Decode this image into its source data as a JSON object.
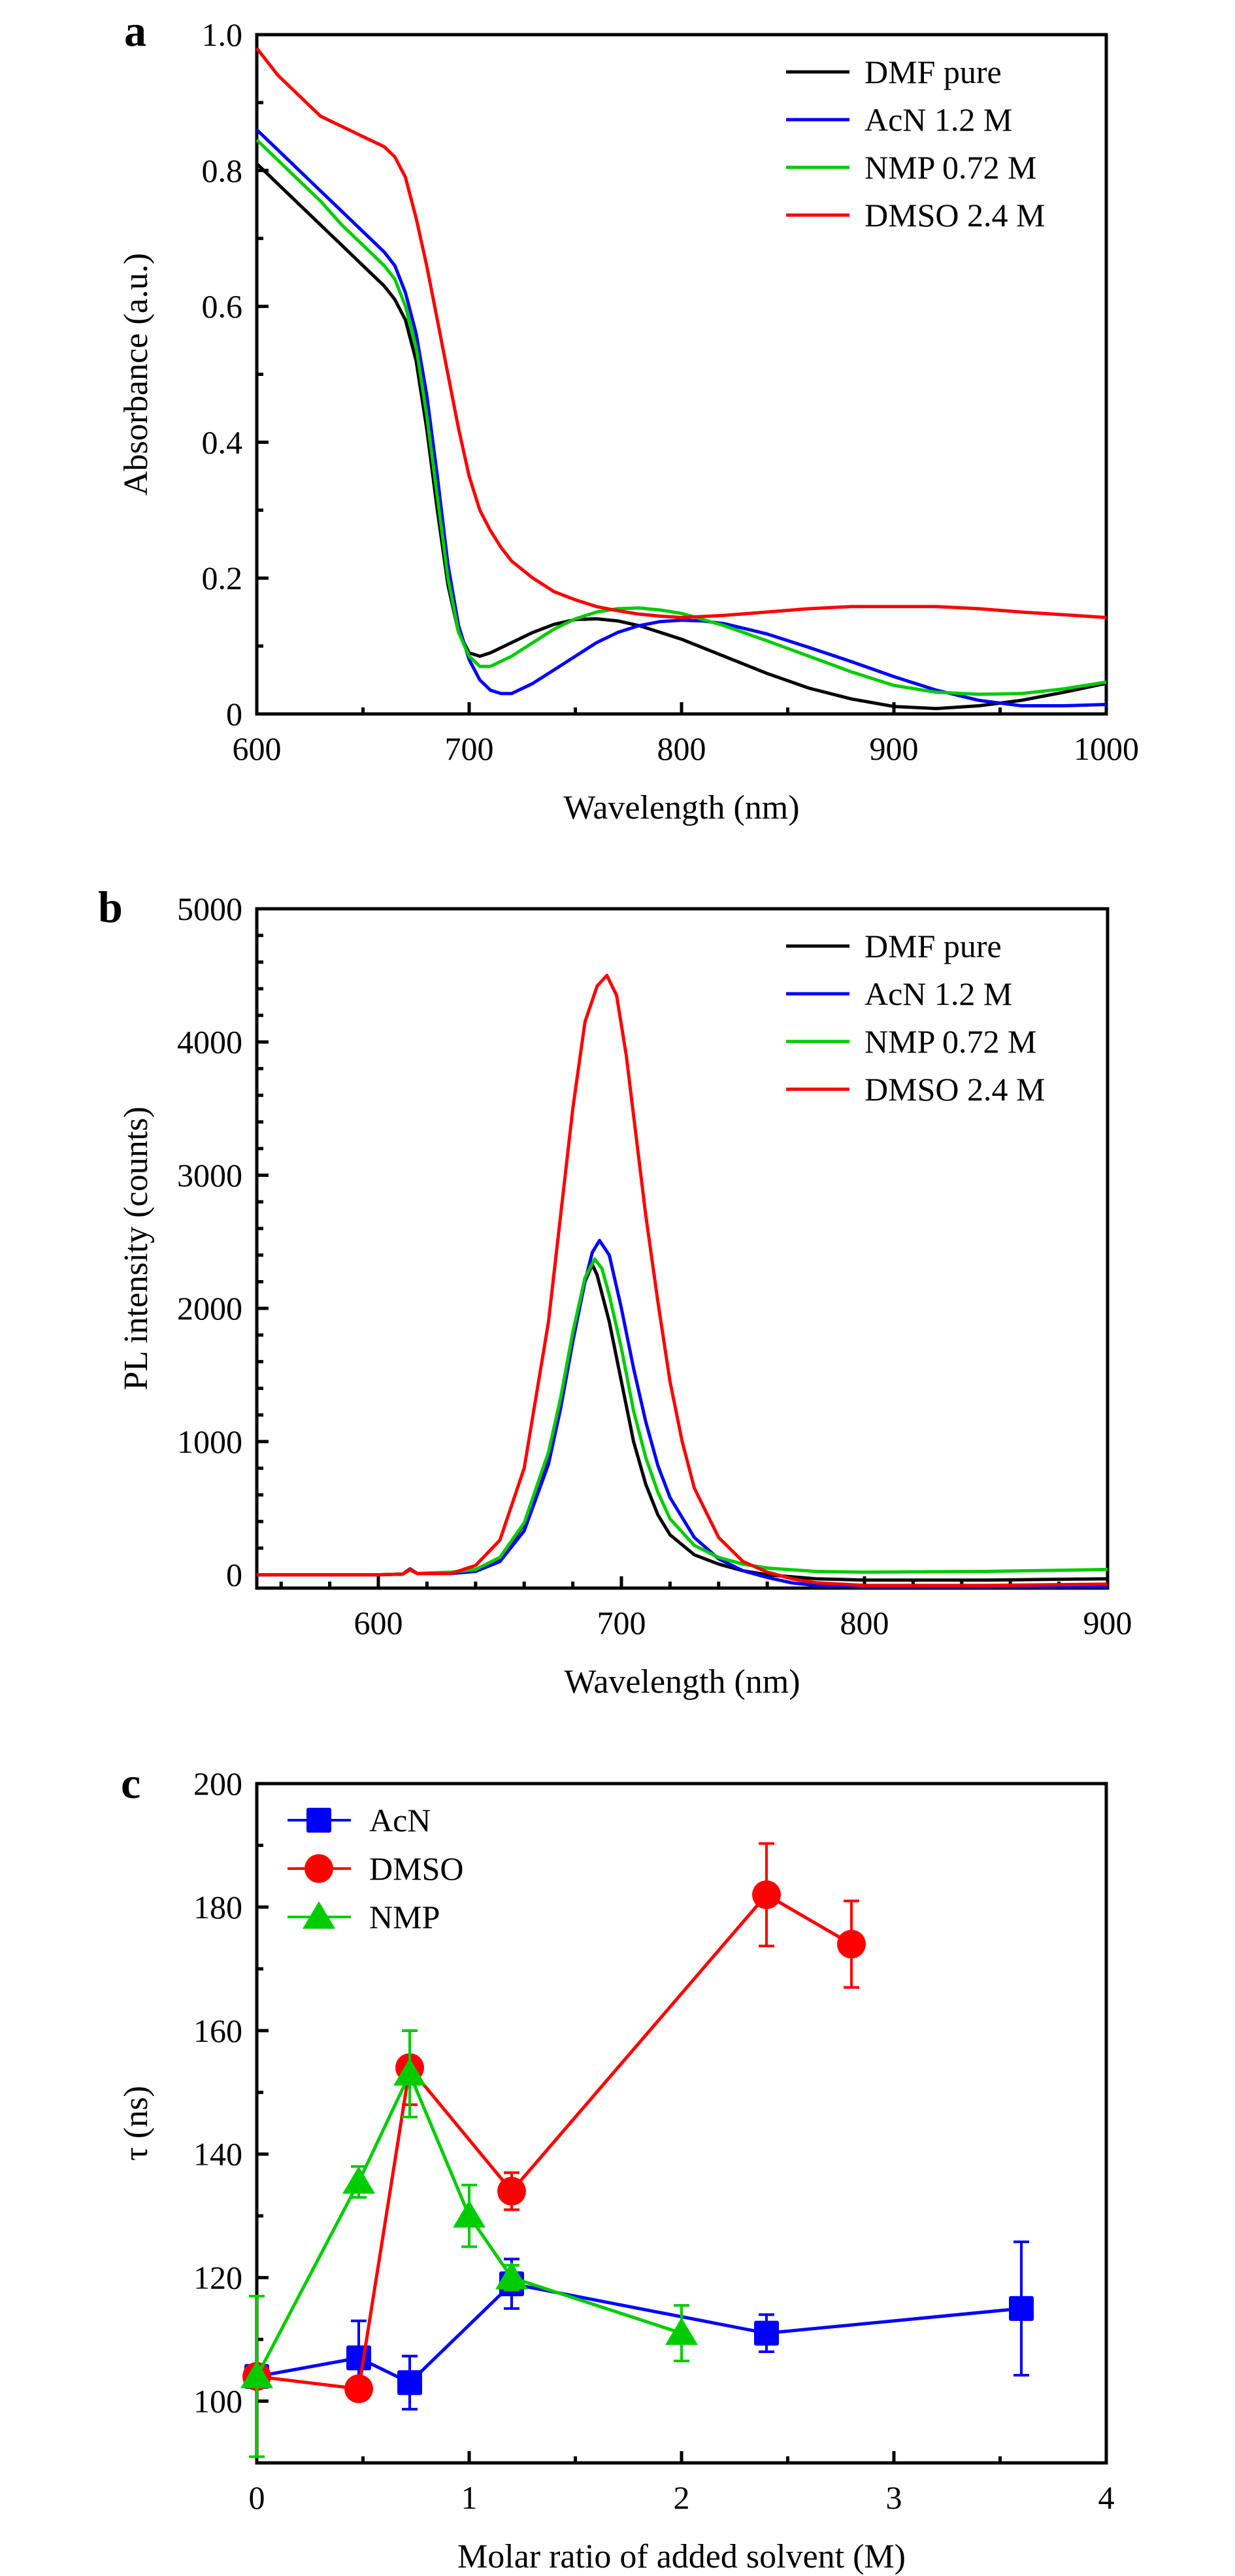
{
  "chart_data": [
    {
      "panel": "a",
      "type": "line",
      "title": "",
      "xlabel": "Wavelength (nm)",
      "ylabel": "Absorbance (a.u.)",
      "xlim": [
        600,
        1000
      ],
      "ylim": [
        0,
        1.0
      ],
      "xticks": [
        600,
        700,
        800,
        900,
        1000
      ],
      "xtick_labels": [
        "600",
        "700",
        "800",
        "900",
        "1000"
      ],
      "xminor": [
        650,
        750,
        850,
        950
      ],
      "yticks": [
        0,
        0.2,
        0.4,
        0.6,
        0.8,
        1.0
      ],
      "ytick_labels": [
        "0",
        "0.2",
        "0.4",
        "0.6",
        "0.8",
        "1.0"
      ],
      "yminor": [
        0.1,
        0.3,
        0.5,
        0.7,
        0.9
      ],
      "grid": false,
      "legend_position": "top-right",
      "series": [
        {
          "name": "DMF pure",
          "color": "#000000",
          "x": [
            600,
            610,
            620,
            630,
            640,
            650,
            660,
            665,
            670,
            675,
            680,
            685,
            690,
            695,
            700,
            705,
            710,
            720,
            730,
            740,
            750,
            760,
            770,
            780,
            790,
            800,
            820,
            840,
            860,
            880,
            900,
            920,
            940,
            960,
            980,
            1000
          ],
          "y": [
            0.81,
            0.78,
            0.75,
            0.72,
            0.69,
            0.66,
            0.63,
            0.61,
            0.58,
            0.52,
            0.42,
            0.3,
            0.19,
            0.12,
            0.09,
            0.085,
            0.09,
            0.105,
            0.12,
            0.132,
            0.139,
            0.14,
            0.137,
            0.13,
            0.12,
            0.11,
            0.085,
            0.06,
            0.038,
            0.022,
            0.011,
            0.008,
            0.012,
            0.02,
            0.032,
            0.045
          ]
        },
        {
          "name": "AcN 1.2 M",
          "color": "#0000ff",
          "x": [
            600,
            610,
            620,
            630,
            640,
            650,
            660,
            665,
            670,
            675,
            680,
            685,
            690,
            695,
            700,
            705,
            710,
            715,
            720,
            730,
            740,
            750,
            760,
            770,
            780,
            790,
            800,
            810,
            820,
            840,
            860,
            880,
            900,
            920,
            940,
            960,
            980,
            1000
          ],
          "y": [
            0.86,
            0.83,
            0.8,
            0.77,
            0.74,
            0.71,
            0.68,
            0.66,
            0.62,
            0.56,
            0.47,
            0.35,
            0.22,
            0.13,
            0.08,
            0.05,
            0.035,
            0.03,
            0.03,
            0.045,
            0.065,
            0.085,
            0.105,
            0.12,
            0.13,
            0.136,
            0.138,
            0.137,
            0.133,
            0.118,
            0.098,
            0.077,
            0.055,
            0.035,
            0.02,
            0.012,
            0.012,
            0.014
          ]
        },
        {
          "name": "NMP 0.72 M",
          "color": "#00cc00",
          "x": [
            600,
            610,
            620,
            630,
            640,
            650,
            660,
            665,
            670,
            675,
            680,
            685,
            690,
            695,
            700,
            705,
            710,
            720,
            730,
            740,
            750,
            760,
            770,
            780,
            790,
            800,
            820,
            840,
            860,
            880,
            900,
            920,
            940,
            960,
            980,
            1000
          ],
          "y": [
            0.845,
            0.815,
            0.785,
            0.755,
            0.72,
            0.69,
            0.66,
            0.64,
            0.6,
            0.54,
            0.44,
            0.32,
            0.2,
            0.12,
            0.085,
            0.07,
            0.07,
            0.085,
            0.105,
            0.125,
            0.14,
            0.15,
            0.155,
            0.156,
            0.153,
            0.148,
            0.13,
            0.108,
            0.085,
            0.062,
            0.042,
            0.032,
            0.029,
            0.03,
            0.037,
            0.047
          ]
        },
        {
          "name": "DMSO 2.4 M",
          "color": "#ff0000",
          "x": [
            600,
            610,
            620,
            630,
            640,
            650,
            660,
            665,
            670,
            675,
            680,
            685,
            690,
            695,
            700,
            705,
            710,
            715,
            720,
            730,
            740,
            750,
            760,
            770,
            780,
            790,
            800,
            820,
            840,
            860,
            880,
            900,
            920,
            940,
            960,
            980,
            1000
          ],
          "y": [
            0.98,
            0.94,
            0.91,
            0.88,
            0.865,
            0.85,
            0.835,
            0.82,
            0.79,
            0.73,
            0.66,
            0.58,
            0.5,
            0.42,
            0.35,
            0.3,
            0.27,
            0.245,
            0.225,
            0.2,
            0.18,
            0.168,
            0.158,
            0.152,
            0.147,
            0.144,
            0.142,
            0.145,
            0.15,
            0.155,
            0.158,
            0.158,
            0.158,
            0.155,
            0.15,
            0.146,
            0.142
          ]
        }
      ]
    },
    {
      "panel": "b",
      "type": "line",
      "title": "",
      "xlabel": "Wavelength (nm)",
      "ylabel": "PL intensity (counts)",
      "xlim": [
        550,
        900
      ],
      "ylim": [
        -100,
        5000
      ],
      "xticks": [
        600,
        700,
        800,
        900
      ],
      "xtick_labels": [
        "600",
        "700",
        "800",
        "900"
      ],
      "xminor": [
        560,
        580,
        620,
        640,
        660,
        680,
        720,
        740,
        760,
        780,
        820,
        840,
        860,
        880
      ],
      "yticks": [
        0,
        1000,
        2000,
        3000,
        4000,
        5000
      ],
      "ytick_labels": [
        "0",
        "1000",
        "2000",
        "3000",
        "4000",
        "5000"
      ],
      "yminor": [
        200,
        400,
        600,
        800,
        1200,
        1400,
        1600,
        1800,
        2200,
        2400,
        2600,
        2800,
        3200,
        3400,
        3600,
        3800,
        4200,
        4400,
        4600,
        4800
      ],
      "grid": false,
      "legend_position": "top-right",
      "series": [
        {
          "name": "DMF pure",
          "color": "#000000",
          "x": [
            550,
            600,
            610,
            613,
            616,
            630,
            640,
            650,
            660,
            670,
            675,
            680,
            685,
            688,
            690,
            695,
            700,
            705,
            710,
            715,
            720,
            730,
            740,
            750,
            760,
            780,
            800,
            850,
            900
          ],
          "y": [
            0,
            0,
            5,
            40,
            10,
            10,
            30,
            120,
            380,
            900,
            1300,
            1800,
            2200,
            2330,
            2250,
            1900,
            1450,
            1000,
            680,
            450,
            300,
            150,
            80,
            30,
            0,
            -30,
            -40,
            -40,
            -30
          ]
        },
        {
          "name": "AcN 1.2 M",
          "color": "#0000ff",
          "x": [
            550,
            600,
            610,
            613,
            616,
            630,
            640,
            650,
            660,
            670,
            675,
            680,
            685,
            688,
            691,
            695,
            700,
            705,
            710,
            715,
            720,
            730,
            740,
            750,
            760,
            770,
            780,
            800,
            850,
            900
          ],
          "y": [
            0,
            0,
            5,
            45,
            10,
            10,
            25,
            100,
            330,
            830,
            1250,
            1750,
            2200,
            2420,
            2510,
            2400,
            2000,
            1550,
            1150,
            820,
            580,
            280,
            120,
            30,
            -20,
            -60,
            -80,
            -90,
            -90,
            -90
          ]
        },
        {
          "name": "NMP 0.72 M",
          "color": "#00cc00",
          "x": [
            550,
            600,
            610,
            613,
            616,
            630,
            640,
            650,
            660,
            670,
            675,
            680,
            685,
            689,
            692,
            695,
            700,
            705,
            710,
            715,
            720,
            730,
            740,
            750,
            760,
            780,
            800,
            850,
            900
          ],
          "y": [
            0,
            0,
            5,
            35,
            10,
            20,
            40,
            130,
            390,
            920,
            1330,
            1820,
            2230,
            2370,
            2300,
            2100,
            1700,
            1230,
            880,
            620,
            420,
            220,
            130,
            80,
            50,
            25,
            20,
            25,
            40
          ]
        },
        {
          "name": "DMSO 2.4 M",
          "color": "#ff0000",
          "x": [
            550,
            600,
            610,
            613,
            616,
            630,
            640,
            650,
            660,
            670,
            675,
            680,
            685,
            690,
            694,
            698,
            702,
            706,
            710,
            715,
            720,
            725,
            730,
            740,
            750,
            760,
            770,
            780,
            800,
            850,
            900
          ],
          "y": [
            0,
            0,
            5,
            40,
            10,
            10,
            70,
            260,
            800,
            1900,
            2700,
            3500,
            4150,
            4420,
            4500,
            4350,
            3900,
            3300,
            2700,
            2050,
            1450,
            1000,
            650,
            280,
            100,
            20,
            -30,
            -60,
            -80,
            -80,
            -70
          ]
        }
      ]
    },
    {
      "panel": "c",
      "type": "scatter",
      "title": "",
      "xlabel": "Molar ratio of added solvent (M)",
      "ylabel": "τ (ns)",
      "xlim": [
        0,
        4
      ],
      "ylim": [
        90,
        200
      ],
      "xticks": [
        0,
        1,
        2,
        3,
        4
      ],
      "xtick_labels": [
        "0",
        "1",
        "2",
        "3",
        "4"
      ],
      "xminor": [
        0.5,
        1.5,
        2.5,
        3.5
      ],
      "yticks": [
        100,
        120,
        140,
        160,
        180,
        200
      ],
      "ytick_labels": [
        "100",
        "120",
        "140",
        "160",
        "180",
        "200"
      ],
      "yminor": [
        110,
        130,
        150,
        170,
        190
      ],
      "grid": false,
      "legend_position": "top-left",
      "series": [
        {
          "name": "AcN",
          "color": "#0000ff",
          "marker": "square",
          "x": [
            0,
            0.48,
            0.72,
            1.2,
            2.4,
            3.6
          ],
          "y": [
            104,
            107,
            103,
            119,
            111,
            115
          ],
          "err": [
            1,
            6,
            4.3,
            4,
            3,
            10.8
          ]
        },
        {
          "name": "DMSO",
          "color": "#ff0000",
          "marker": "circle",
          "x": [
            0,
            0.48,
            0.72,
            1.2,
            2.4,
            2.8
          ],
          "y": [
            104,
            102,
            154,
            134,
            182,
            174
          ],
          "err": [
            1,
            1,
            6,
            3,
            8.3,
            7
          ]
        },
        {
          "name": "NMP",
          "color": "#00cc00",
          "marker": "triangle",
          "x": [
            0,
            0.48,
            0.72,
            1.0,
            1.2,
            2.0
          ],
          "y": [
            104,
            135.5,
            153,
            130,
            120,
            111
          ],
          "err": [
            13,
            2.5,
            7,
            5,
            2,
            4.5
          ]
        }
      ]
    }
  ]
}
